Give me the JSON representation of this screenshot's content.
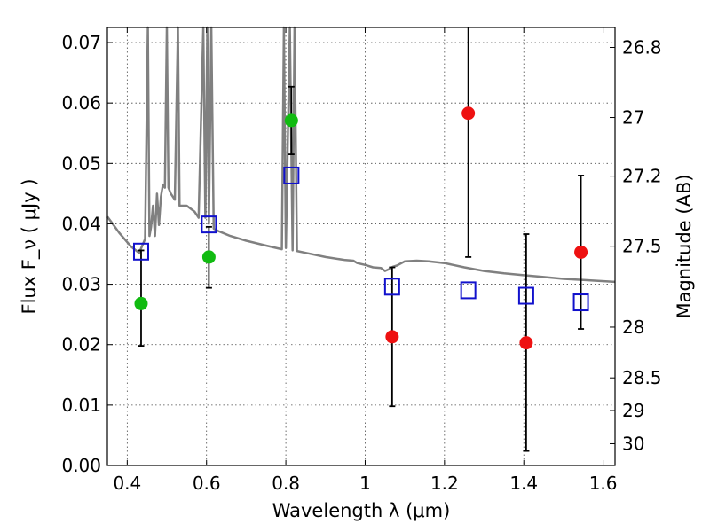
{
  "chart_data": {
    "type": "scatter",
    "xlabel": "Wavelength  λ (μm)",
    "ylabel": "Flux  F_ν  ( μJy )",
    "y2label": "Magnitude (AB)",
    "xlim": [
      0.35,
      1.63
    ],
    "ylim": [
      0.0,
      0.0725
    ],
    "grid": true,
    "x_ticks": [
      0.4,
      0.6,
      0.8,
      1.0,
      1.2,
      1.4,
      1.6
    ],
    "x_tick_labels": [
      "0.4",
      "0.6",
      "0.8",
      "1",
      "1.2",
      "1.4",
      "1.6"
    ],
    "y_ticks": [
      0.0,
      0.01,
      0.02,
      0.03,
      0.04,
      0.05,
      0.06,
      0.07
    ],
    "y_tick_labels": [
      "0.00",
      "0.01",
      "0.02",
      "0.03",
      "0.04",
      "0.05",
      "0.06",
      "0.07"
    ],
    "y2_ticks": [
      {
        "label": "26.8",
        "flux": 0.0692
      },
      {
        "label": "27",
        "flux": 0.0576
      },
      {
        "label": "27.2",
        "flux": 0.0479
      },
      {
        "label": "27.5",
        "flux": 0.0363
      },
      {
        "label": "28",
        "flux": 0.0229
      },
      {
        "label": "28.5",
        "flux": 0.0145
      },
      {
        "label": "29",
        "flux": 0.0091
      },
      {
        "label": "30",
        "flux": 0.0036
      }
    ],
    "series": [
      {
        "marker": "circle",
        "color": "#11bb11",
        "points": [
          {
            "x": 0.435,
            "y": 0.0268,
            "err_lo": 0.0198,
            "err_hi": 0.0356
          },
          {
            "x": 0.606,
            "y": 0.0345,
            "err_lo": 0.0294,
            "err_hi": 0.0395
          },
          {
            "x": 0.814,
            "y": 0.0571,
            "err_lo": 0.0515,
            "err_hi": 0.0627
          }
        ]
      },
      {
        "marker": "circle",
        "color": "#ee1111",
        "points": [
          {
            "x": 1.068,
            "y": 0.0213,
            "err_lo": 0.0098,
            "err_hi": 0.0328
          },
          {
            "x": 1.26,
            "y": 0.0583,
            "err_lo": 0.0345,
            "err_hi": 0.0725
          },
          {
            "x": 1.406,
            "y": 0.0203,
            "err_lo": 0.0024,
            "err_hi": 0.0383
          },
          {
            "x": 1.544,
            "y": 0.0353,
            "err_lo": 0.0226,
            "err_hi": 0.048
          }
        ]
      },
      {
        "marker": "square",
        "color": "#1111cc",
        "points": [
          {
            "x": 0.435,
            "y": 0.0354
          },
          {
            "x": 0.606,
            "y": 0.0399
          },
          {
            "x": 0.814,
            "y": 0.048
          },
          {
            "x": 1.068,
            "y": 0.0296
          },
          {
            "x": 1.26,
            "y": 0.029
          },
          {
            "x": 1.406,
            "y": 0.0281
          },
          {
            "x": 1.544,
            "y": 0.027
          }
        ]
      },
      {
        "type": "line",
        "color": "#808080",
        "points": [
          [
            0.35,
            0.0412
          ],
          [
            0.38,
            0.0385
          ],
          [
            0.41,
            0.0362
          ],
          [
            0.43,
            0.0352
          ],
          [
            0.445,
            0.0375
          ],
          [
            0.452,
            0.0725
          ],
          [
            0.456,
            0.038
          ],
          [
            0.46,
            0.0395
          ],
          [
            0.465,
            0.043
          ],
          [
            0.47,
            0.038
          ],
          [
            0.475,
            0.045
          ],
          [
            0.48,
            0.0398
          ],
          [
            0.485,
            0.0445
          ],
          [
            0.49,
            0.0465
          ],
          [
            0.495,
            0.046
          ],
          [
            0.5,
            0.0725
          ],
          [
            0.504,
            0.046
          ],
          [
            0.51,
            0.045
          ],
          [
            0.52,
            0.044
          ],
          [
            0.528,
            0.0725
          ],
          [
            0.532,
            0.043
          ],
          [
            0.55,
            0.043
          ],
          [
            0.57,
            0.042
          ],
          [
            0.58,
            0.041
          ],
          [
            0.592,
            0.0725
          ],
          [
            0.597,
            0.041
          ],
          [
            0.602,
            0.0725
          ],
          [
            0.606,
            0.04
          ],
          [
            0.612,
            0.0725
          ],
          [
            0.618,
            0.0392
          ],
          [
            0.63,
            0.0388
          ],
          [
            0.66,
            0.038
          ],
          [
            0.7,
            0.0372
          ],
          [
            0.75,
            0.0364
          ],
          [
            0.79,
            0.0358
          ],
          [
            0.795,
            0.0725
          ],
          [
            0.8,
            0.036
          ],
          [
            0.81,
            0.0725
          ],
          [
            0.817,
            0.0356
          ],
          [
            0.822,
            0.0725
          ],
          [
            0.828,
            0.0355
          ],
          [
            0.85,
            0.0352
          ],
          [
            0.9,
            0.0345
          ],
          [
            0.95,
            0.034
          ],
          [
            0.97,
            0.0339
          ],
          [
            0.98,
            0.0335
          ],
          [
            1.0,
            0.0332
          ],
          [
            1.02,
            0.0328
          ],
          [
            1.04,
            0.0327
          ],
          [
            1.05,
            0.0322
          ],
          [
            1.06,
            0.0325
          ],
          [
            1.07,
            0.0329
          ],
          [
            1.08,
            0.0331
          ],
          [
            1.1,
            0.0338
          ],
          [
            1.13,
            0.0339
          ],
          [
            1.16,
            0.0338
          ],
          [
            1.2,
            0.0335
          ],
          [
            1.25,
            0.0328
          ],
          [
            1.3,
            0.0322
          ],
          [
            1.35,
            0.0318
          ],
          [
            1.4,
            0.0315
          ],
          [
            1.45,
            0.0312
          ],
          [
            1.5,
            0.0309
          ],
          [
            1.55,
            0.0307
          ],
          [
            1.63,
            0.0304
          ]
        ]
      }
    ]
  }
}
